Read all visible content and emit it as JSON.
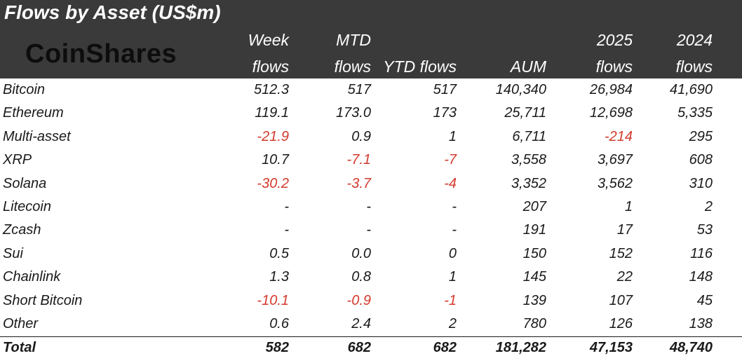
{
  "title": "Flows by Asset (US$m)",
  "logo": "CoinShares",
  "headers": [
    {
      "line1": "Week",
      "line2": "flows"
    },
    {
      "line1": "MTD",
      "line2": "flows"
    },
    {
      "line1": "",
      "line2": "YTD flows"
    },
    {
      "line1": "",
      "line2": "AUM"
    },
    {
      "line1": "2025",
      "line2": "flows"
    },
    {
      "line1": "2024",
      "line2": "flows"
    }
  ],
  "rows": [
    {
      "name": "Bitcoin",
      "values": [
        "512.3",
        "517",
        "517",
        "140,340",
        "26,984",
        "41,690"
      ]
    },
    {
      "name": "Ethereum",
      "values": [
        "119.1",
        "173.0",
        "173",
        "25,711",
        "12,698",
        "5,335"
      ]
    },
    {
      "name": "Multi-asset",
      "values": [
        "-21.9",
        "0.9",
        "1",
        "6,711",
        "-214",
        "295"
      ]
    },
    {
      "name": "XRP",
      "values": [
        "10.7",
        "-7.1",
        "-7",
        "3,558",
        "3,697",
        "608"
      ]
    },
    {
      "name": "Solana",
      "values": [
        "-30.2",
        "-3.7",
        "-4",
        "3,352",
        "3,562",
        "310"
      ]
    },
    {
      "name": "Litecoin",
      "values": [
        "-",
        "-",
        "-",
        "207",
        "1",
        "2"
      ]
    },
    {
      "name": "Zcash",
      "values": [
        "-",
        "-",
        "-",
        "191",
        "17",
        "53"
      ]
    },
    {
      "name": "Sui",
      "values": [
        "0.5",
        "0.0",
        "0",
        "150",
        "152",
        "116"
      ]
    },
    {
      "name": "Chainlink",
      "values": [
        "1.3",
        "0.8",
        "1",
        "145",
        "22",
        "148"
      ]
    },
    {
      "name": "Short Bitcoin",
      "values": [
        "-10.1",
        "-0.9",
        "-1",
        "139",
        "107",
        "45"
      ]
    },
    {
      "name": "Other",
      "values": [
        "0.6",
        "2.4",
        "2",
        "780",
        "126",
        "138"
      ]
    }
  ],
  "total": {
    "name": "Total",
    "values": [
      "582",
      "682",
      "682",
      "181,282",
      "47,153",
      "48,740"
    ]
  },
  "colors": {
    "header_bg": "#3a3a3a",
    "negative": "#d33a2c"
  }
}
